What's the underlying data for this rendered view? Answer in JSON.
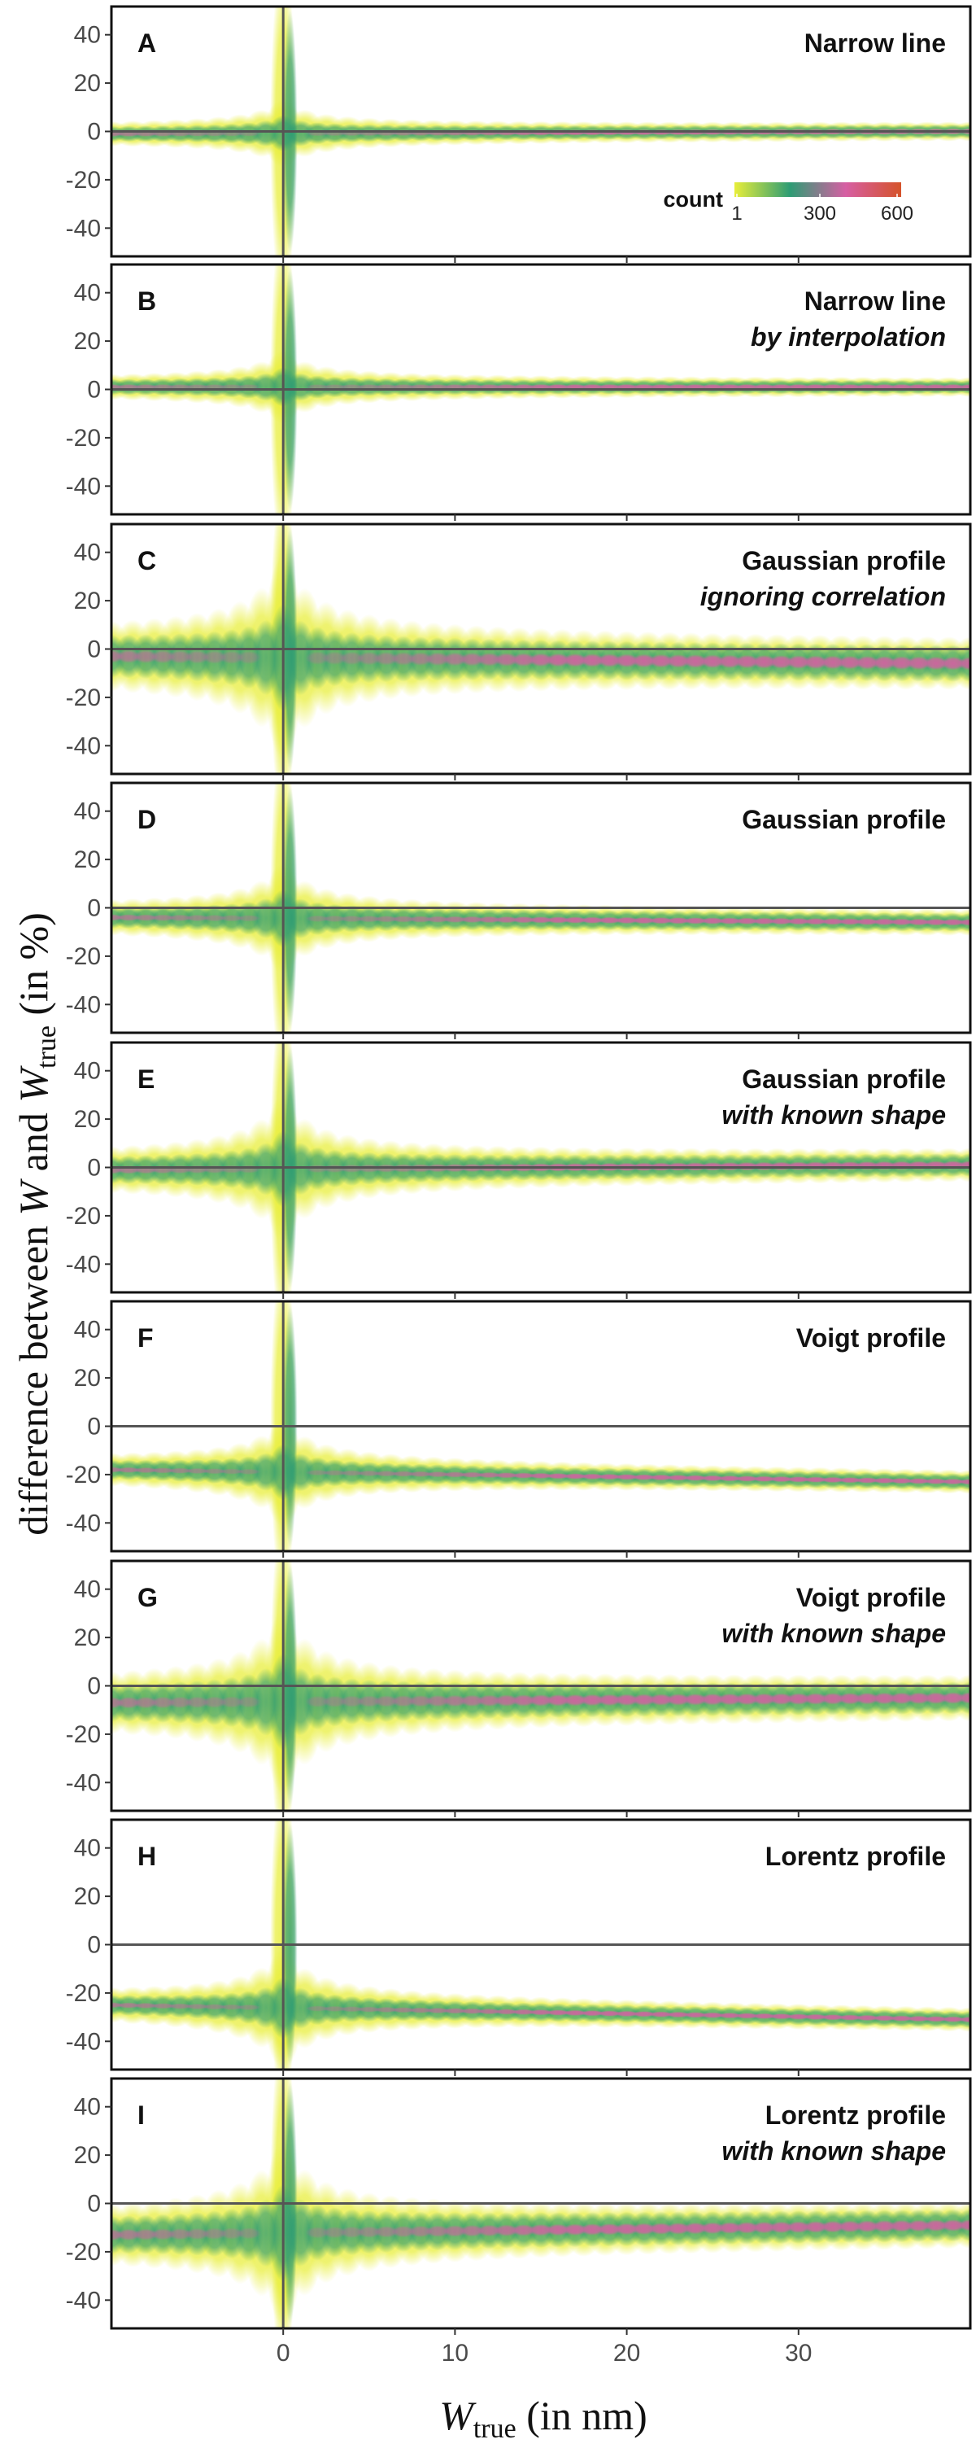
{
  "colors": {
    "yellow": "#e8ee3a",
    "green": "#2e9c74",
    "pink": "#d65fa3",
    "orange": "#d5532a",
    "axis_line": "#555555",
    "frame": "#111111"
  },
  "chart_data": {
    "type": "heatmap",
    "x_axis_label": "W_true (in nm)",
    "x_axis_label_parts": {
      "symbol": "W",
      "subscript": "true",
      "rest": " (in nm)"
    },
    "y_axis_label": "difference between W and W_true (in %)",
    "y_axis_label_parts": {
      "prefix": "difference between ",
      "w1": "W",
      "and": " and ",
      "w2": "W",
      "subscript": "true",
      "rest": " (in %)"
    },
    "x_range": [
      -10,
      40
    ],
    "y_range": [
      -50,
      50
    ],
    "x_ticks": [
      0,
      10,
      20,
      30
    ],
    "y_ticks": [
      40,
      20,
      0,
      -20,
      -40
    ],
    "legend": {
      "title": "count",
      "ticks": [
        1,
        300,
        600
      ],
      "colors": [
        "#e8ee3a",
        "#2e9c74",
        "#d65fa3",
        "#d5532a"
      ]
    },
    "panels": [
      {
        "letter": "A",
        "title": "Narrow line",
        "subtitle": "",
        "bias_start": -1,
        "bias_end": 0,
        "band_width": 3,
        "spread_level": 0.4
      },
      {
        "letter": "B",
        "title": "Narrow line",
        "subtitle": "by interpolation",
        "bias_start": 1,
        "bias_end": 1,
        "band_width": 3,
        "spread_level": 0.45
      },
      {
        "letter": "C",
        "title": "Gaussian profile",
        "subtitle": "ignoring correlation",
        "bias_start": -3,
        "bias_end": -6,
        "band_width": 8,
        "spread_level": 1.25
      },
      {
        "letter": "D",
        "title": "Gaussian profile",
        "subtitle": "",
        "bias_start": -4,
        "bias_end": -6,
        "band_width": 4,
        "spread_level": 0.7
      },
      {
        "letter": "E",
        "title": "Gaussian profile",
        "subtitle": "with known shape",
        "bias_start": -1,
        "bias_end": 1,
        "band_width": 5,
        "spread_level": 0.95
      },
      {
        "letter": "F",
        "title": "Voigt profile",
        "subtitle": "",
        "bias_start": -18,
        "bias_end": -23,
        "band_width": 3.5,
        "spread_level": 0.7
      },
      {
        "letter": "G",
        "title": "Voigt profile",
        "subtitle": "with known shape",
        "bias_start": -7,
        "bias_end": -5,
        "band_width": 7,
        "spread_level": 1.15
      },
      {
        "letter": "H",
        "title": "Lorentz profile",
        "subtitle": "",
        "bias_start": -25,
        "bias_end": -31,
        "band_width": 3.5,
        "spread_level": 0.8
      },
      {
        "letter": "I",
        "title": "Lorentz profile",
        "subtitle": "with known shape",
        "bias_start": -13,
        "bias_end": -9,
        "band_width": 7,
        "spread_level": 1.15
      }
    ]
  }
}
